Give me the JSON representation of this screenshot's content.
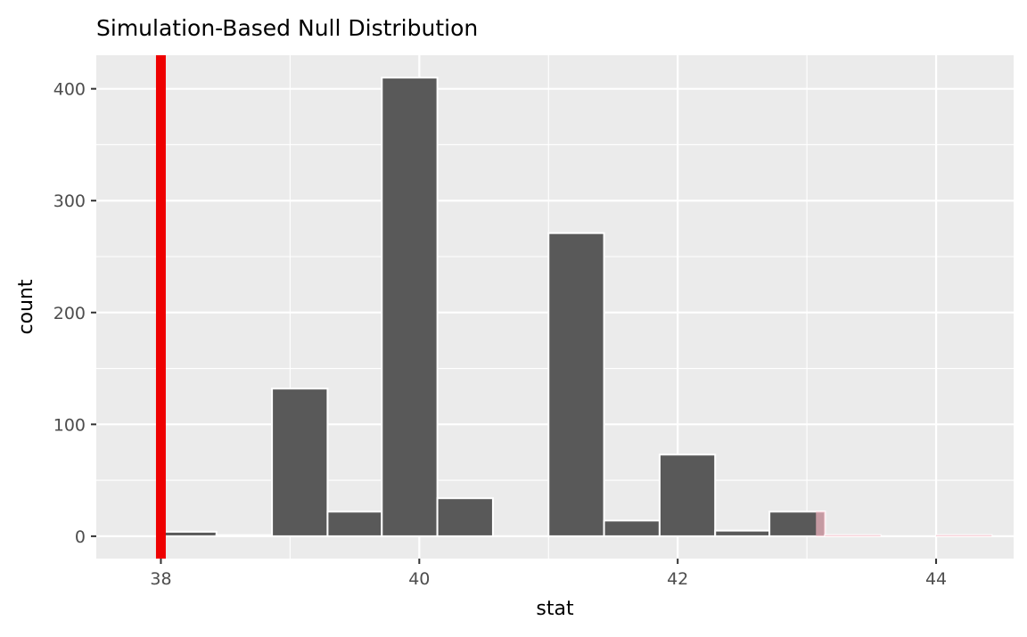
{
  "chart_data": {
    "type": "bar",
    "title": "Simulation-Based Null Distribution",
    "xlabel": "stat",
    "ylabel": "count",
    "xlim": [
      37.5,
      44.6
    ],
    "ylim": [
      -20,
      430
    ],
    "x_ticks": [
      38,
      40,
      42,
      44
    ],
    "y_ticks": [
      0,
      100,
      200,
      300,
      400
    ],
    "bin_width": 0.43,
    "bins": [
      {
        "x_start": 38.0,
        "x_end": 38.43,
        "count": 4
      },
      {
        "x_start": 38.43,
        "x_end": 38.86,
        "count": 1
      },
      {
        "x_start": 38.86,
        "x_end": 39.29,
        "count": 132
      },
      {
        "x_start": 39.29,
        "x_end": 39.71,
        "count": 22
      },
      {
        "x_start": 39.71,
        "x_end": 40.14,
        "count": 410
      },
      {
        "x_start": 40.14,
        "x_end": 40.57,
        "count": 34
      },
      {
        "x_start": 40.57,
        "x_end": 41.0,
        "count": 0
      },
      {
        "x_start": 41.0,
        "x_end": 41.43,
        "count": 271
      },
      {
        "x_start": 41.43,
        "x_end": 41.86,
        "count": 14
      },
      {
        "x_start": 41.86,
        "x_end": 42.29,
        "count": 73
      },
      {
        "x_start": 42.29,
        "x_end": 42.71,
        "count": 5
      },
      {
        "x_start": 42.71,
        "x_end": 43.14,
        "count": 22
      },
      {
        "x_start": 43.14,
        "x_end": 43.57,
        "count": 1
      },
      {
        "x_start": 43.57,
        "x_end": 44.0,
        "count": 0
      },
      {
        "x_start": 44.0,
        "x_end": 44.43,
        "count": 1
      }
    ],
    "observed_stat": 38.0,
    "shaded_regions": [
      {
        "x_start": 37.95,
        "x_end": 38.0
      },
      {
        "x_start": 43.07,
        "x_end": 44.43
      }
    ],
    "colors": {
      "bar_fill": "#595959",
      "bar_outline": "#ffffff",
      "observed_line": "#ee0000",
      "shade_fill": "#f4b6c2",
      "panel_background": "#ebebeb",
      "grid": "#ffffff"
    },
    "grid": true,
    "legend": "none"
  }
}
